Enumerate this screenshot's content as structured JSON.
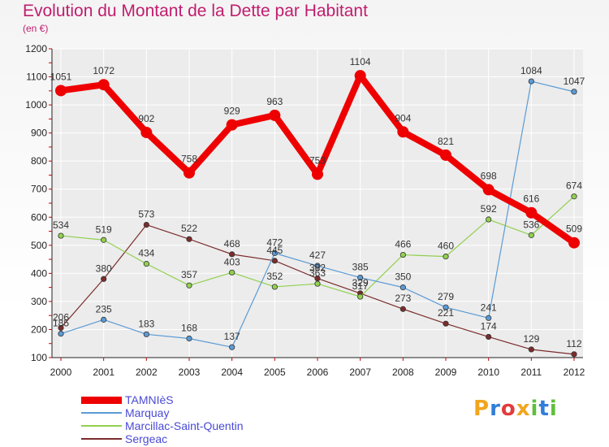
{
  "colors": {
    "title": "#c01d6e",
    "legend_text": "#4a4ad6",
    "grid": "#ffffff",
    "axis": "#222222"
  },
  "chart_data": {
    "type": "line",
    "title": "Evolution du Montant de la Dette par Habitant",
    "subtitle": "(en €)",
    "x": [
      "2000",
      "2001",
      "2002",
      "2003",
      "2004",
      "2005",
      "2006",
      "2007",
      "2008",
      "2009",
      "2010",
      "2011",
      "2012"
    ],
    "ylim": [
      100,
      1200
    ],
    "yticks": [
      100,
      200,
      300,
      400,
      500,
      600,
      700,
      800,
      900,
      1000,
      1100,
      1200
    ],
    "legend_position": "bottom-left",
    "series": [
      {
        "name": "TAMNIèS",
        "color": "#ee0000",
        "width": 8,
        "values": [
          1051,
          1072,
          902,
          758,
          929,
          963,
          753,
          1104,
          904,
          821,
          698,
          616,
          509
        ]
      },
      {
        "name": "Marquay",
        "color": "#5b9bd5",
        "width": 1.2,
        "values": [
          185,
          235,
          183,
          168,
          137,
          472,
          427,
          385,
          350,
          279,
          241,
          1084,
          1047
        ]
      },
      {
        "name": "Marcillac-Saint-Quentin",
        "color": "#92d050",
        "width": 1.2,
        "values": [
          534,
          519,
          434,
          357,
          403,
          352,
          363,
          317,
          466,
          460,
          592,
          536,
          674
        ]
      },
      {
        "name": "Sergeac",
        "color": "#7b2c2c",
        "width": 1.2,
        "values": [
          206,
          380,
          573,
          522,
          468,
          445,
          382,
          329,
          273,
          221,
          174,
          129,
          112
        ]
      }
    ]
  },
  "logo": {
    "letters": [
      "P",
      "r",
      "o",
      "x",
      "i",
      "t",
      "i"
    ],
    "colors": [
      "#f2a51d",
      "#2f7fd8",
      "#e23b3b",
      "#f2a51d",
      "#5fbf3a",
      "#2f7fd8",
      "#5fbf3a"
    ]
  }
}
